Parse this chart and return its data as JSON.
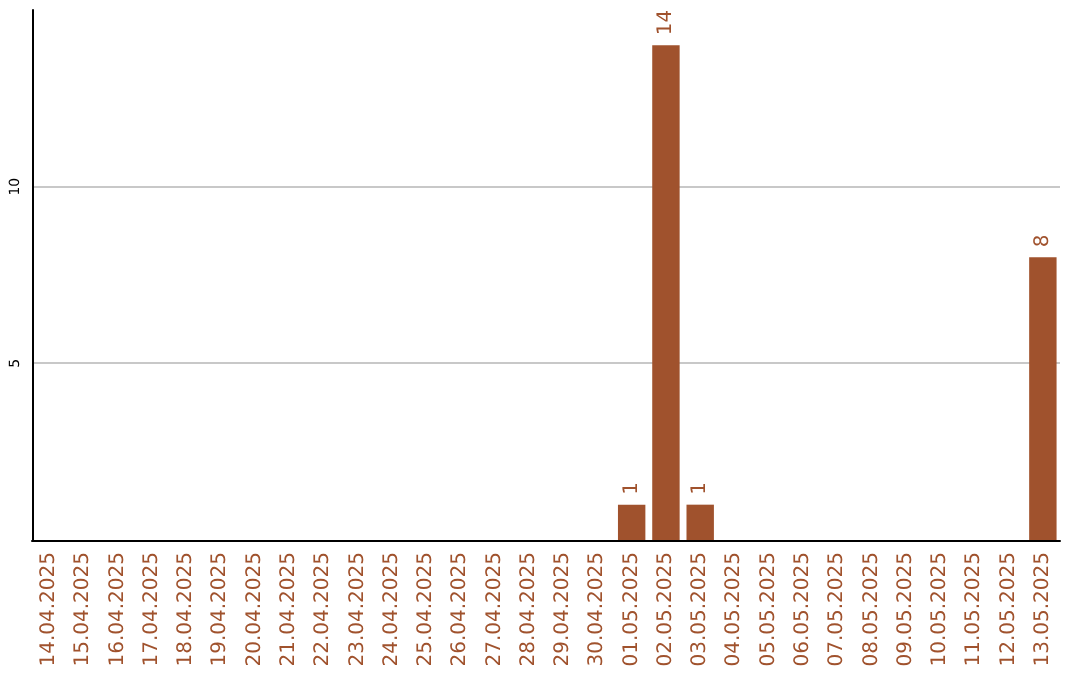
{
  "chart_data": {
    "type": "bar",
    "categories": [
      "14.04.2025",
      "15.04.2025",
      "16.04.2025",
      "17.04.2025",
      "18.04.2025",
      "19.04.2025",
      "20.04.2025",
      "21.04.2025",
      "22.04.2025",
      "23.04.2025",
      "24.04.2025",
      "25.04.2025",
      "26.04.2025",
      "27.04.2025",
      "28.04.2025",
      "29.04.2025",
      "30.04.2025",
      "01.05.2025",
      "02.05.2025",
      "03.05.2025",
      "04.05.2025",
      "05.05.2025",
      "06.05.2025",
      "07.05.2025",
      "08.05.2025",
      "09.05.2025",
      "10.05.2025",
      "11.05.2025",
      "12.05.2025",
      "13.05.2025"
    ],
    "values": [
      0,
      0,
      0,
      0,
      0,
      0,
      0,
      0,
      0,
      0,
      0,
      0,
      0,
      0,
      0,
      0,
      0,
      1,
      14,
      1,
      0,
      0,
      0,
      0,
      0,
      0,
      0,
      0,
      0,
      8
    ],
    "value_labels": [
      null,
      null,
      null,
      null,
      null,
      null,
      null,
      null,
      null,
      null,
      null,
      null,
      null,
      null,
      null,
      null,
      null,
      "1",
      "14",
      "1",
      null,
      null,
      null,
      null,
      null,
      null,
      null,
      null,
      null,
      "8"
    ],
    "color": "#a0522d",
    "ylim": [
      0,
      15
    ],
    "yticks": [
      5,
      10
    ],
    "grid": "y"
  }
}
